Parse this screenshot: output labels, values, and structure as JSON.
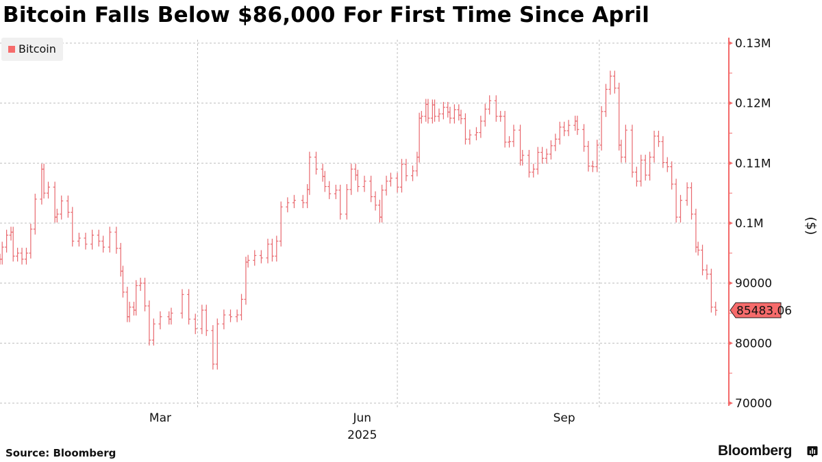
{
  "title": "Bitcoin Falls Below $86,000 For First Time Since April",
  "source": "Source: Bloomberg",
  "brand": "Bloomberg",
  "colors": {
    "series": "#e8676d",
    "axis": "#f46a6a",
    "last_label_bg": "#f66b6b",
    "grid": "#bdbdbd"
  },
  "chart_data": {
    "type": "ohlc-bar",
    "title": "Bitcoin Falls Below $86,000 For First Time Since April",
    "ylabel": "($)",
    "ylim": [
      70000,
      130000
    ],
    "xlim": [
      "2025-01-01",
      "2025-11-29"
    ],
    "grid": true,
    "legend_position": "top-left",
    "y_ticks": [
      {
        "value": 130000,
        "label": "0.13M"
      },
      {
        "value": 120000,
        "label": "0.12M"
      },
      {
        "value": 110000,
        "label": "0.11M"
      },
      {
        "value": 100000,
        "label": "0.1M"
      },
      {
        "value": 90000,
        "label": "90000"
      },
      {
        "value": 80000,
        "label": "80000"
      },
      {
        "value": 70000,
        "label": "70000"
      }
    ],
    "x_gridlines": [
      "2025-04-01",
      "2025-07-01",
      "2025-10-01"
    ],
    "x_ticks": [
      {
        "date": "2025-03-15",
        "label": "Mar"
      },
      {
        "date": "2025-06-15",
        "label": "Jun"
      },
      {
        "date": "2025-09-15",
        "label": "Sep"
      }
    ],
    "x_year_label": {
      "date": "2025-06-15",
      "label": "2025"
    },
    "last_value": {
      "value": 85483.06,
      "label": "85483.06"
    },
    "series": [
      {
        "name": "Bitcoin",
        "points": [
          [
            "2025-01-01",
            94000
          ],
          [
            "2025-01-02",
            96000
          ],
          [
            "2025-01-04",
            98000
          ],
          [
            "2025-01-06",
            98500
          ],
          [
            "2025-01-07",
            94500
          ],
          [
            "2025-01-09",
            95000
          ],
          [
            "2025-01-11",
            94000
          ],
          [
            "2025-01-13",
            95000
          ],
          [
            "2025-01-15",
            99000
          ],
          [
            "2025-01-17",
            104000
          ],
          [
            "2025-01-20",
            109000
          ],
          [
            "2025-01-21",
            105000
          ],
          [
            "2025-01-23",
            106000
          ],
          [
            "2025-01-26",
            101000
          ],
          [
            "2025-01-27",
            101500
          ],
          [
            "2025-01-29",
            103700
          ],
          [
            "2025-02-01",
            101800
          ],
          [
            "2025-02-03",
            97000
          ],
          [
            "2025-02-06",
            97500
          ],
          [
            "2025-02-09",
            96500
          ],
          [
            "2025-02-12",
            98000
          ],
          [
            "2025-02-15",
            97000
          ],
          [
            "2025-02-17",
            96000
          ],
          [
            "2025-02-20",
            98500
          ],
          [
            "2025-02-23",
            95800
          ],
          [
            "2025-02-25",
            92000
          ],
          [
            "2025-02-26",
            88500
          ],
          [
            "2025-02-28",
            84400
          ],
          [
            "2025-03-01",
            86000
          ],
          [
            "2025-03-03",
            85500
          ],
          [
            "2025-03-04",
            89600
          ],
          [
            "2025-03-06",
            90000
          ],
          [
            "2025-03-08",
            86200
          ],
          [
            "2025-03-10",
            80500
          ],
          [
            "2025-03-12",
            83200
          ],
          [
            "2025-03-15",
            84400
          ],
          [
            "2025-03-19",
            84000
          ],
          [
            "2025-03-20",
            85000
          ],
          [
            "2025-03-25",
            88100
          ],
          [
            "2025-03-28",
            84000
          ],
          [
            "2025-03-31",
            82400
          ],
          [
            "2025-04-03",
            85500
          ],
          [
            "2025-04-05",
            82100
          ],
          [
            "2025-04-08",
            76500
          ],
          [
            "2025-04-10",
            83200
          ],
          [
            "2025-04-13",
            84700
          ],
          [
            "2025-04-16",
            84400
          ],
          [
            "2025-04-19",
            84700
          ],
          [
            "2025-04-21",
            87300
          ],
          [
            "2025-04-23",
            93500
          ],
          [
            "2025-04-24",
            93800
          ],
          [
            "2025-04-27",
            94600
          ],
          [
            "2025-04-30",
            94200
          ],
          [
            "2025-05-03",
            96500
          ],
          [
            "2025-05-05",
            94500
          ],
          [
            "2025-05-07",
            97000
          ],
          [
            "2025-05-09",
            102700
          ],
          [
            "2025-05-12",
            103400
          ],
          [
            "2025-05-15",
            103800
          ],
          [
            "2025-05-19",
            103400
          ],
          [
            "2025-05-21",
            105600
          ],
          [
            "2025-05-22",
            111000
          ],
          [
            "2025-05-25",
            109000
          ],
          [
            "2025-05-28",
            107800
          ],
          [
            "2025-05-29",
            106100
          ],
          [
            "2025-05-31",
            104900
          ],
          [
            "2025-06-03",
            105500
          ],
          [
            "2025-06-05",
            101500
          ],
          [
            "2025-06-08",
            105600
          ],
          [
            "2025-06-10",
            109000
          ],
          [
            "2025-06-12",
            108000
          ],
          [
            "2025-06-13",
            106100
          ],
          [
            "2025-06-16",
            107000
          ],
          [
            "2025-06-19",
            104400
          ],
          [
            "2025-06-21",
            103000
          ],
          [
            "2025-06-23",
            101000
          ],
          [
            "2025-06-24",
            105500
          ],
          [
            "2025-06-26",
            107000
          ],
          [
            "2025-06-28",
            107500
          ],
          [
            "2025-07-01",
            106000
          ],
          [
            "2025-07-03",
            109800
          ],
          [
            "2025-07-05",
            107900
          ],
          [
            "2025-07-08",
            108700
          ],
          [
            "2025-07-10",
            111000
          ],
          [
            "2025-07-11",
            117500
          ],
          [
            "2025-07-12",
            117800
          ],
          [
            "2025-07-14",
            119800
          ],
          [
            "2025-07-15",
            117500
          ],
          [
            "2025-07-17",
            119700
          ],
          [
            "2025-07-18",
            117800
          ],
          [
            "2025-07-20",
            118200
          ],
          [
            "2025-07-22",
            119300
          ],
          [
            "2025-07-24",
            118500
          ],
          [
            "2025-07-25",
            117500
          ],
          [
            "2025-07-27",
            118900
          ],
          [
            "2025-07-29",
            118000
          ],
          [
            "2025-07-30",
            117400
          ],
          [
            "2025-08-01",
            114000
          ],
          [
            "2025-08-03",
            114700
          ],
          [
            "2025-08-06",
            115100
          ],
          [
            "2025-08-08",
            117000
          ],
          [
            "2025-08-10",
            119000
          ],
          [
            "2025-08-12",
            120400
          ],
          [
            "2025-08-15",
            117800
          ],
          [
            "2025-08-17",
            117800
          ],
          [
            "2025-08-19",
            113500
          ],
          [
            "2025-08-21",
            113600
          ],
          [
            "2025-08-23",
            115500
          ],
          [
            "2025-08-26",
            110500
          ],
          [
            "2025-08-27",
            111300
          ],
          [
            "2025-08-30",
            108500
          ],
          [
            "2025-09-01",
            109000
          ],
          [
            "2025-09-03",
            111800
          ],
          [
            "2025-09-05",
            110800
          ],
          [
            "2025-09-07",
            111500
          ],
          [
            "2025-09-09",
            112900
          ],
          [
            "2025-09-11",
            114000
          ],
          [
            "2025-09-13",
            116000
          ],
          [
            "2025-09-15",
            115400
          ],
          [
            "2025-09-17",
            116300
          ],
          [
            "2025-09-20",
            117000
          ],
          [
            "2025-09-21",
            115600
          ],
          [
            "2025-09-24",
            112800
          ],
          [
            "2025-09-26",
            109500
          ],
          [
            "2025-09-28",
            109400
          ],
          [
            "2025-09-30",
            113000
          ],
          [
            "2025-10-02",
            118600
          ],
          [
            "2025-10-04",
            122300
          ],
          [
            "2025-10-06",
            124500
          ],
          [
            "2025-10-08",
            122500
          ],
          [
            "2025-10-10",
            113000
          ],
          [
            "2025-10-11",
            111000
          ],
          [
            "2025-10-13",
            115500
          ],
          [
            "2025-10-16",
            108500
          ],
          [
            "2025-10-18",
            107000
          ],
          [
            "2025-10-20",
            110500
          ],
          [
            "2025-10-22",
            108000
          ],
          [
            "2025-10-24",
            111000
          ],
          [
            "2025-10-26",
            114500
          ],
          [
            "2025-10-28",
            113600
          ],
          [
            "2025-10-30",
            110100
          ],
          [
            "2025-11-01",
            109400
          ],
          [
            "2025-11-03",
            106500
          ],
          [
            "2025-11-05",
            101000
          ],
          [
            "2025-11-07",
            103800
          ],
          [
            "2025-11-10",
            105900
          ],
          [
            "2025-11-12",
            101500
          ],
          [
            "2025-11-14",
            96000
          ],
          [
            "2025-11-15",
            95500
          ],
          [
            "2025-11-17",
            92200
          ],
          [
            "2025-11-19",
            91500
          ],
          [
            "2025-11-21",
            86000
          ],
          [
            "2025-11-23",
            85483.06
          ]
        ]
      }
    ]
  }
}
